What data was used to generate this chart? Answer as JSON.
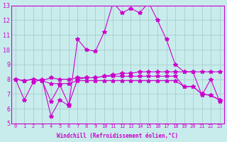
{
  "xlabel": "Windchill (Refroidissement éolien,°C)",
  "background_color": "#c8ecec",
  "grid_color": "#a0c8c8",
  "line_color": "#cc00cc",
  "xlim": [
    -0.5,
    23.5
  ],
  "ylim": [
    5,
    13
  ],
  "xticks": [
    0,
    1,
    2,
    3,
    4,
    5,
    6,
    7,
    8,
    9,
    10,
    11,
    12,
    13,
    14,
    15,
    16,
    17,
    18,
    19,
    20,
    21,
    22,
    23
  ],
  "yticks": [
    5,
    6,
    7,
    8,
    9,
    10,
    11,
    12,
    13
  ],
  "series": [
    [
      8.0,
      6.6,
      7.8,
      8.0,
      5.5,
      6.6,
      6.2,
      10.7,
      10.0,
      9.9,
      11.2,
      13.2,
      12.5,
      12.8,
      12.5,
      13.2,
      12.0,
      10.7,
      9.0,
      8.5,
      8.5,
      6.9,
      8.0,
      6.5
    ],
    [
      8.0,
      7.9,
      8.0,
      7.9,
      6.5,
      7.6,
      6.3,
      8.0,
      8.1,
      8.1,
      8.2,
      8.2,
      8.2,
      8.2,
      8.2,
      8.2,
      8.2,
      8.2,
      8.2,
      7.5,
      7.5,
      7.0,
      6.9,
      6.6
    ],
    [
      8.0,
      7.9,
      8.0,
      7.9,
      7.7,
      7.7,
      7.7,
      7.9,
      7.9,
      7.9,
      7.9,
      7.9,
      7.9,
      7.9,
      7.9,
      7.9,
      7.9,
      7.9,
      7.9,
      7.5,
      7.5,
      7.0,
      6.9,
      6.6
    ],
    [
      8.0,
      7.9,
      8.0,
      7.9,
      8.1,
      8.0,
      8.0,
      8.1,
      8.1,
      8.1,
      8.2,
      8.3,
      8.4,
      8.4,
      8.5,
      8.5,
      8.5,
      8.5,
      8.5,
      8.5,
      8.5,
      8.5,
      8.5,
      8.5
    ]
  ]
}
